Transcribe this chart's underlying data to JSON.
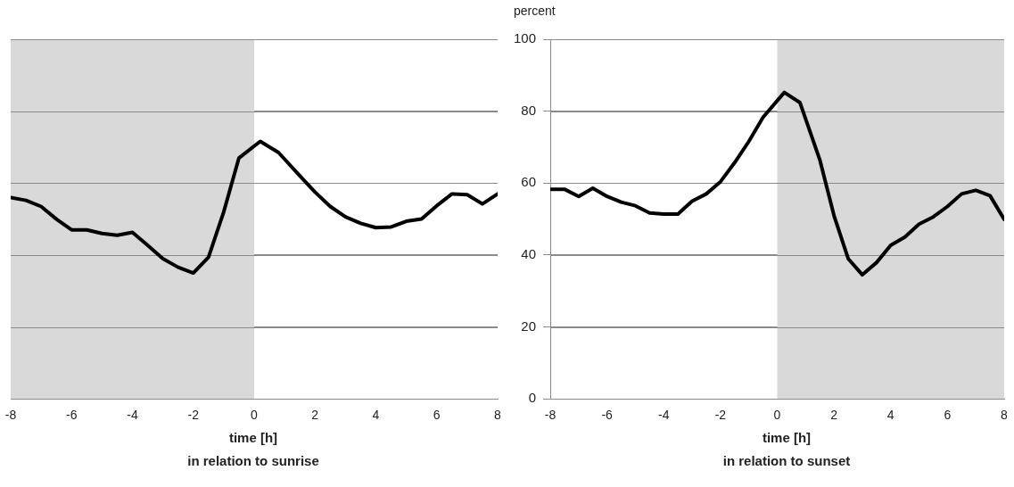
{
  "chart_data": [
    {
      "type": "line",
      "xlabel": "time [h]",
      "annotations": [
        "in relation to sunrise"
      ],
      "xlim": [
        -8,
        8
      ],
      "xticks": [
        -8,
        -6,
        -4,
        -2,
        0,
        2,
        4,
        6,
        8
      ],
      "ylim": [
        0,
        100
      ],
      "yticks": [
        0,
        20,
        40,
        60,
        80,
        100
      ],
      "tick_labels": "x",
      "grid": "y",
      "legend": false,
      "marker": "none",
      "line_style": "solid",
      "bands": [
        {
          "axis": "x",
          "from": -8,
          "to": 0,
          "color": "#d9d9d9"
        }
      ],
      "series": [
        {
          "color": "#000000",
          "x": [
            -8,
            -7.5,
            -7,
            -6.5,
            -6,
            -5.5,
            -5,
            -4.5,
            -4,
            -3.5,
            -3,
            -2.5,
            -2,
            -1.5,
            -1,
            -0.5,
            0.2,
            0.8,
            1.5,
            2,
            2.5,
            3,
            3.5,
            4,
            4.5,
            5,
            5.5,
            6,
            6.5,
            7,
            7.5,
            8
          ],
          "values": [
            56,
            55.2,
            53.5,
            50,
            47,
            47,
            46,
            45.5,
            46.3,
            42.7,
            39,
            36.6,
            35,
            39.4,
            52,
            67,
            71.6,
            68.5,
            62,
            57.5,
            53.5,
            50.6,
            48.8,
            47.6,
            47.8,
            49.4,
            50,
            53.7,
            57,
            56.8,
            54.2,
            57
          ]
        }
      ]
    },
    {
      "type": "line",
      "xlabel": "time [h]",
      "ylabel": "percent",
      "annotations": [
        "in relation to sunset"
      ],
      "xlim": [
        -8,
        8
      ],
      "xticks": [
        -8,
        -6,
        -4,
        -2,
        0,
        2,
        4,
        6,
        8
      ],
      "ylim": [
        0,
        100
      ],
      "yticks": [
        0,
        20,
        40,
        60,
        80,
        100
      ],
      "grid": "y",
      "legend": false,
      "marker": "none",
      "line_style": "solid",
      "bands": [
        {
          "axis": "x",
          "from": 0,
          "to": 8,
          "color": "#d9d9d9"
        }
      ],
      "series": [
        {
          "color": "#000000",
          "x": [
            -8,
            -7.5,
            -7,
            -6.5,
            -6,
            -5.5,
            -5,
            -4.5,
            -4,
            -3.5,
            -3,
            -2.5,
            -2,
            -1.5,
            -1,
            -0.5,
            0.25,
            0.8,
            1.5,
            2,
            2.5,
            3,
            3.5,
            4,
            4.5,
            5,
            5.5,
            6,
            6.5,
            7,
            7.5,
            8
          ],
          "values": [
            58.3,
            58.3,
            56.3,
            58.6,
            56.3,
            54.7,
            53.7,
            51.7,
            51.4,
            51.4,
            55,
            57,
            60.4,
            65.7,
            71.6,
            78.3,
            85.2,
            82.4,
            66.5,
            51,
            39,
            34.5,
            37.9,
            42.7,
            45,
            48.6,
            50.6,
            53.5,
            57,
            58,
            56.5,
            49.9
          ]
        }
      ]
    }
  ]
}
